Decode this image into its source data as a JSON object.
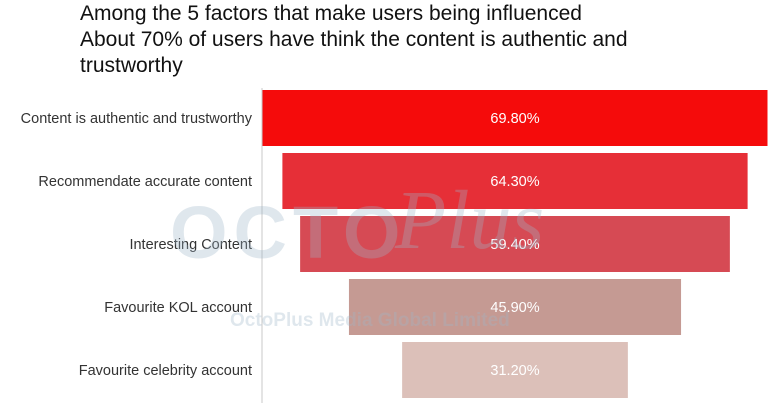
{
  "title": "Among the 5 factors that make users being influenced\nAbout 70% of users have think the content is authentic and\ntrustworthy",
  "watermark": {
    "logo_word": "OCTO",
    "logo_script": "Plus",
    "company": "OctoPlus Media Global Limited"
  },
  "colors": {
    "bars": [
      "#f50b0b",
      "#e62f37",
      "#d64a54",
      "#c59a93",
      "#dcc0b9"
    ],
    "axis": "#c8c8c8",
    "label_text": "#333333",
    "value_text": "#ffffff",
    "watermark": "#9fb6c8"
  },
  "chart_data": {
    "type": "bar",
    "subtype": "funnel",
    "title": "Among the 5 factors that make users being influenced\nAbout 70% of users have think the content is authentic and\ntrustworthy",
    "categories": [
      "Content is authentic and trustworthy",
      "Recommendate accurate content",
      "Interesting Content",
      "Favourite KOL account",
      "Favourite celebrity account"
    ],
    "values": [
      69.8,
      64.3,
      59.4,
      45.9,
      31.2
    ],
    "value_labels": [
      "69.80%",
      "64.30%",
      "59.40%",
      "45.90%",
      "31.20%"
    ],
    "unit": "%",
    "xlim": [
      0,
      69.8
    ],
    "grid": false,
    "legend": "none"
  }
}
